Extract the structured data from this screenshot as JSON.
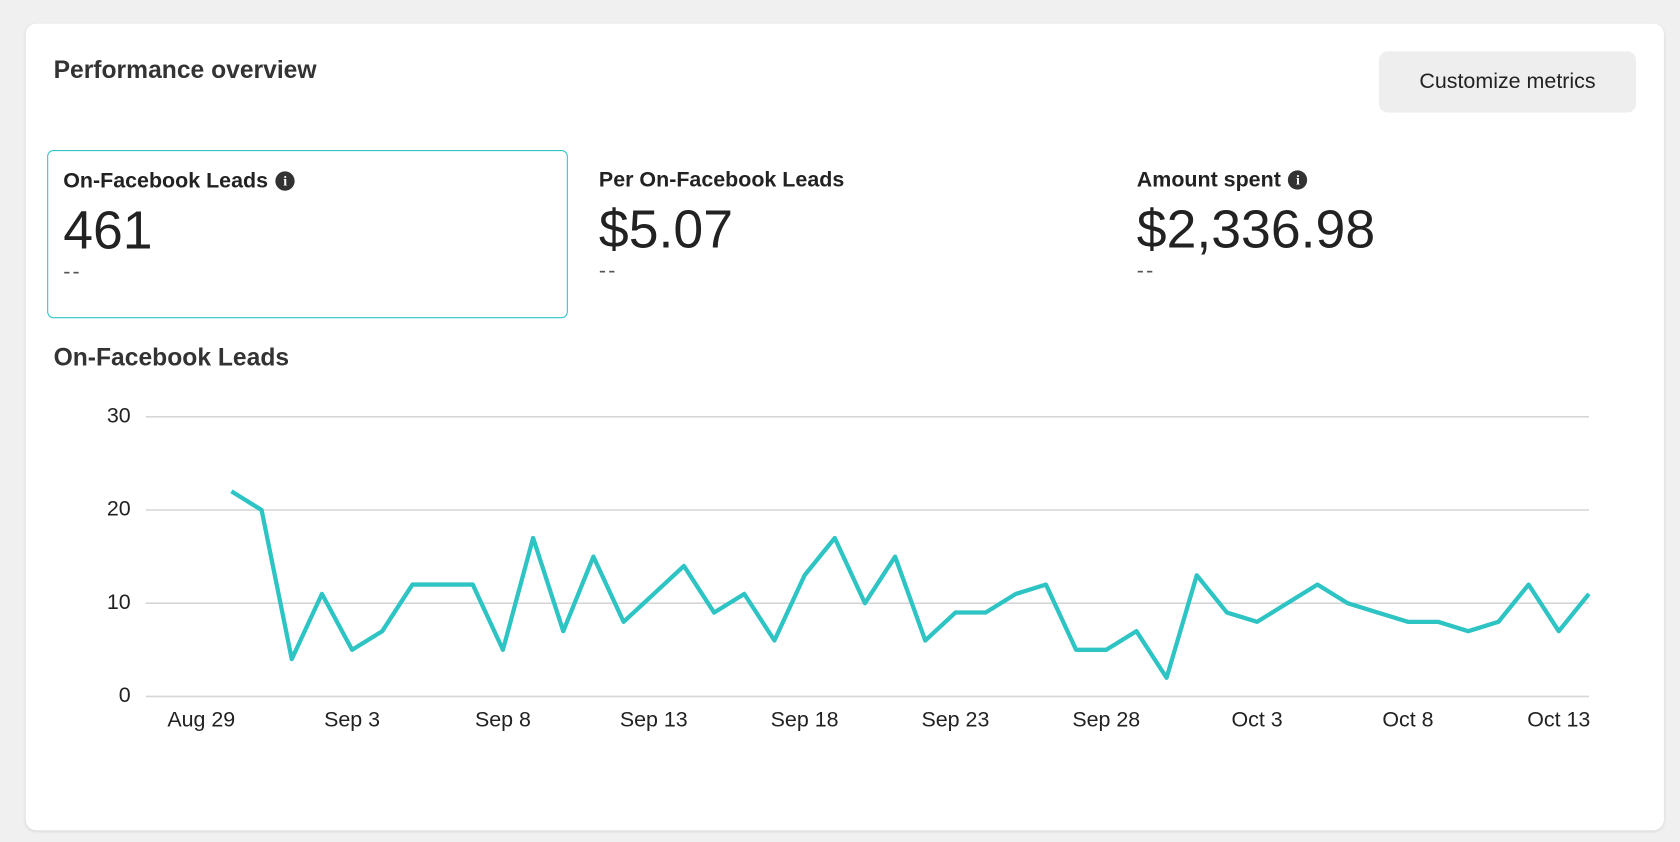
{
  "header": {
    "title": "Performance overview",
    "button": "Customize metrics"
  },
  "metrics": [
    {
      "label": "On-Facebook Leads",
      "value": "461",
      "delta": "--"
    },
    {
      "label": "Per On-Facebook Leads",
      "value": "$5.07",
      "delta": "--"
    },
    {
      "label": "Amount spent",
      "value": "$2,336.98",
      "delta": "--"
    }
  ],
  "chart_data": {
    "type": "line",
    "title": "On-Facebook Leads",
    "x": [
      "Aug 30",
      "Aug 31",
      "Sep 1",
      "Sep 2",
      "Sep 3",
      "Sep 4",
      "Sep 5",
      "Sep 6",
      "Sep 7",
      "Sep 8",
      "Sep 9",
      "Sep 10",
      "Sep 11",
      "Sep 12",
      "Sep 13",
      "Sep 14",
      "Sep 15",
      "Sep 16",
      "Sep 17",
      "Sep 18",
      "Sep 19",
      "Sep 20",
      "Sep 21",
      "Sep 22",
      "Sep 23",
      "Sep 24",
      "Sep 25",
      "Sep 26",
      "Sep 27",
      "Sep 28",
      "Sep 29",
      "Sep 30",
      "Oct 1",
      "Oct 2",
      "Oct 3",
      "Oct 4",
      "Oct 5",
      "Oct 6",
      "Oct 7",
      "Oct 8",
      "Oct 9",
      "Oct 10",
      "Oct 11",
      "Oct 12",
      "Oct 13",
      "Oct 14"
    ],
    "series": [
      {
        "name": "On-Facebook Leads",
        "color": "#2ec4c4",
        "values": [
          22,
          20,
          4,
          11,
          5,
          7,
          12,
          12,
          12,
          5,
          17,
          7,
          15,
          8,
          11,
          14,
          9,
          11,
          6,
          13,
          17,
          10,
          15,
          6,
          9,
          9,
          11,
          12,
          5,
          5,
          7,
          2,
          13,
          9,
          8,
          10,
          12,
          10,
          9,
          8,
          8,
          7,
          8,
          12,
          7,
          11
        ]
      }
    ],
    "xticks": [
      "Aug 29",
      "Sep 3",
      "Sep 8",
      "Sep 13",
      "Sep 18",
      "Sep 23",
      "Sep 28",
      "Oct 3",
      "Oct 8",
      "Oct 13"
    ],
    "ylim": [
      0,
      30
    ],
    "yticks": [
      0,
      10,
      20,
      30
    ],
    "grid": true
  }
}
